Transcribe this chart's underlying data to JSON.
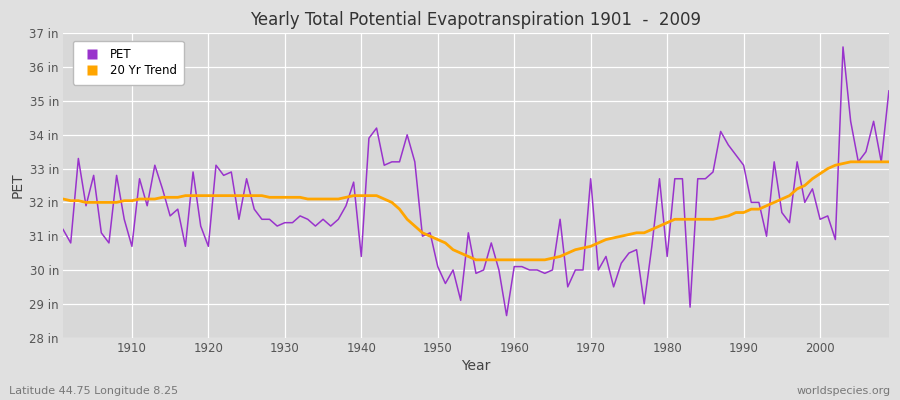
{
  "title": "Yearly Total Potential Evapotranspiration 1901  -  2009",
  "xlabel": "Year",
  "ylabel": "PET",
  "footer_left": "Latitude 44.75 Longitude 8.25",
  "footer_right": "worldspecies.org",
  "pet_color": "#9933CC",
  "trend_color": "#FFA500",
  "fig_bg_color": "#E0E0E0",
  "plot_bg_color": "#D8D8D8",
  "ylim": [
    28,
    37
  ],
  "ytick_labels": [
    "28 in",
    "29 in",
    "30 in",
    "31 in",
    "32 in",
    "33 in",
    "34 in",
    "35 in",
    "36 in",
    "37 in"
  ],
  "ytick_values": [
    28,
    29,
    30,
    31,
    32,
    33,
    34,
    35,
    36,
    37
  ],
  "years": [
    1901,
    1902,
    1903,
    1904,
    1905,
    1906,
    1907,
    1908,
    1909,
    1910,
    1911,
    1912,
    1913,
    1914,
    1915,
    1916,
    1917,
    1918,
    1919,
    1920,
    1921,
    1922,
    1923,
    1924,
    1925,
    1926,
    1927,
    1928,
    1929,
    1930,
    1931,
    1932,
    1933,
    1934,
    1935,
    1936,
    1937,
    1938,
    1939,
    1940,
    1941,
    1942,
    1943,
    1944,
    1945,
    1946,
    1947,
    1948,
    1949,
    1950,
    1951,
    1952,
    1953,
    1954,
    1955,
    1956,
    1957,
    1958,
    1959,
    1960,
    1961,
    1962,
    1963,
    1964,
    1965,
    1966,
    1967,
    1968,
    1969,
    1970,
    1971,
    1972,
    1973,
    1974,
    1975,
    1976,
    1977,
    1978,
    1979,
    1980,
    1981,
    1982,
    1983,
    1984,
    1985,
    1986,
    1987,
    1988,
    1989,
    1990,
    1991,
    1992,
    1993,
    1994,
    1995,
    1996,
    1997,
    1998,
    1999,
    2000,
    2001,
    2002,
    2003,
    2004,
    2005,
    2006,
    2007,
    2008,
    2009
  ],
  "pet": [
    31.2,
    30.8,
    33.3,
    31.9,
    32.8,
    31.1,
    30.8,
    32.8,
    31.5,
    30.7,
    32.7,
    31.9,
    33.1,
    32.4,
    31.6,
    31.8,
    30.7,
    32.9,
    31.3,
    30.7,
    33.1,
    32.8,
    32.9,
    31.5,
    32.7,
    31.8,
    31.5,
    31.5,
    31.3,
    31.4,
    31.4,
    31.6,
    31.5,
    31.3,
    31.5,
    31.3,
    31.5,
    31.9,
    32.6,
    30.4,
    33.9,
    34.2,
    33.1,
    33.2,
    33.2,
    34.0,
    33.2,
    31.0,
    31.1,
    30.1,
    29.6,
    30.0,
    29.1,
    31.1,
    29.9,
    30.0,
    30.8,
    30.0,
    28.65,
    30.1,
    30.1,
    30.0,
    30.0,
    29.9,
    30.0,
    31.5,
    29.5,
    30.0,
    30.0,
    32.7,
    30.0,
    30.4,
    29.5,
    30.2,
    30.5,
    30.6,
    29.0,
    30.7,
    32.7,
    30.4,
    32.7,
    32.7,
    28.9,
    32.7,
    32.7,
    32.9,
    34.1,
    33.7,
    33.4,
    33.1,
    32.0,
    32.0,
    31.0,
    33.2,
    31.7,
    31.4,
    33.2,
    32.0,
    32.4,
    31.5,
    31.6,
    30.9,
    36.6,
    34.4,
    33.2,
    33.5,
    34.4,
    33.2,
    35.3
  ],
  "trend": [
    32.1,
    32.05,
    32.05,
    32.0,
    32.0,
    32.0,
    32.0,
    32.0,
    32.05,
    32.05,
    32.1,
    32.1,
    32.1,
    32.15,
    32.15,
    32.15,
    32.2,
    32.2,
    32.2,
    32.2,
    32.2,
    32.2,
    32.2,
    32.2,
    32.2,
    32.2,
    32.2,
    32.15,
    32.15,
    32.15,
    32.15,
    32.15,
    32.1,
    32.1,
    32.1,
    32.1,
    32.1,
    32.15,
    32.2,
    32.2,
    32.2,
    32.2,
    32.1,
    32.0,
    31.8,
    31.5,
    31.3,
    31.1,
    31.0,
    30.9,
    30.8,
    30.6,
    30.5,
    30.4,
    30.3,
    30.3,
    30.3,
    30.3,
    30.3,
    30.3,
    30.3,
    30.3,
    30.3,
    30.3,
    30.35,
    30.4,
    30.5,
    30.6,
    30.65,
    30.7,
    30.8,
    30.9,
    30.95,
    31.0,
    31.05,
    31.1,
    31.1,
    31.2,
    31.3,
    31.4,
    31.5,
    31.5,
    31.5,
    31.5,
    31.5,
    31.5,
    31.55,
    31.6,
    31.7,
    31.7,
    31.8,
    31.8,
    31.9,
    32.0,
    32.1,
    32.2,
    32.4,
    32.5,
    32.7,
    32.85,
    33.0,
    33.1,
    33.15,
    33.2,
    33.2,
    33.2,
    33.2,
    33.2,
    33.2
  ]
}
